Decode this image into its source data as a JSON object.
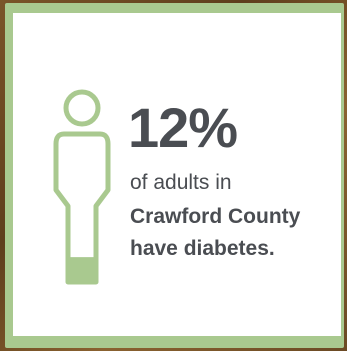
{
  "infographic": {
    "stat_value": "12%",
    "line1": "of adults in",
    "line2": "Crawford County",
    "line3": "have diabetes.",
    "filled_fraction": 0.12
  },
  "colors": {
    "figure_outline": "#a9c98f",
    "figure_fill": "#a9c98f",
    "text": "#4a4d52",
    "card_background": "#ffffff",
    "frame_border": "#a9c98f"
  },
  "icons": {
    "person": "person-outline-icon"
  }
}
